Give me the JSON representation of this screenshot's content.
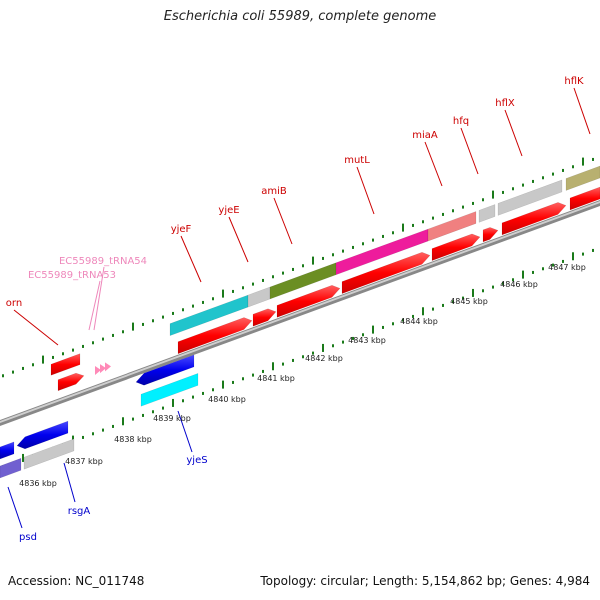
{
  "title": "Escherichia coli 55989, complete genome",
  "footer": {
    "accession": "Accession: NC_011748",
    "summary": "Topology: circular; Length: 5,154,862 bp; Genes: 4,984"
  },
  "colors": {
    "forward_label": "#cc0000",
    "reverse_label": "#0000cc",
    "trna_label": "#ee88bb",
    "tick": "#1a7a1a",
    "backbone": "#888888"
  },
  "scale_labels": [
    "4836 kbp",
    "4837 kbp",
    "4838 kbp",
    "4839 kbp",
    "4840 kbp",
    "4841 kbp",
    "4842 kbp",
    "4843 kbp",
    "4844 kbp",
    "4845 kbp",
    "4846 kbp",
    "4847 kbp"
  ],
  "genes_top": [
    "orn",
    "EC55989_tRNA53",
    "EC55989_tRNA54",
    "yjeF",
    "yjeE",
    "amiB",
    "mutL",
    "miaA",
    "hfq",
    "hflX",
    "hflK"
  ],
  "genes_bottom": [
    "psd",
    "rsgA",
    "yjeS"
  ]
}
